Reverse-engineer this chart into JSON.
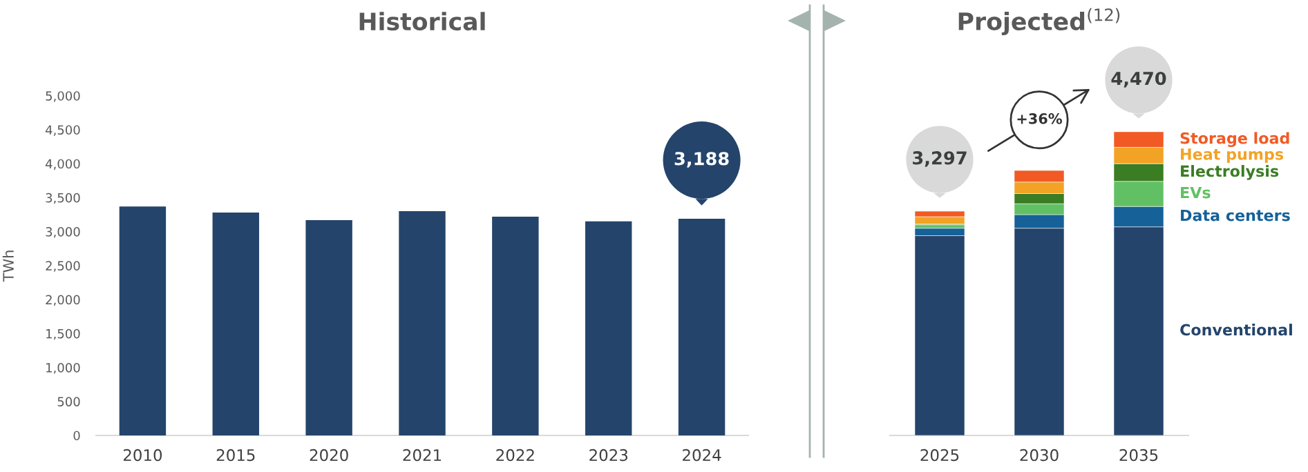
{
  "chart_data": [
    {
      "type": "bar",
      "title": "Historical",
      "ylabel": "TWh",
      "categories": [
        "2010",
        "2015",
        "2020",
        "2021",
        "2022",
        "2023",
        "2024"
      ],
      "values": [
        3370,
        3280,
        3170,
        3300,
        3220,
        3150,
        3188
      ],
      "color": "#24446b",
      "value_labels": [
        null,
        null,
        null,
        null,
        null,
        null,
        "3,188"
      ],
      "ylim": [
        0,
        5000
      ],
      "yticks": [
        0,
        500,
        {
          "value": 1000,
          "label": "1,000"
        },
        {
          "value": 1500,
          "label": "1,500"
        },
        {
          "value": 2000,
          "label": "2,000"
        },
        {
          "value": 2500,
          "label": "2,500"
        },
        {
          "value": 3000,
          "label": "3,000"
        },
        {
          "value": 3500,
          "label": "3,500"
        },
        {
          "value": 4000,
          "label": "4,000"
        },
        {
          "value": 4500,
          "label": "4,500"
        },
        {
          "value": 5000,
          "label": "5,000"
        }
      ]
    },
    {
      "type": "bar",
      "title": "Projected$^{(12)}$",
      "categories": [
        "2025",
        "2030",
        "2035"
      ],
      "stacked": true,
      "series": [
        {
          "name": "Conventional",
          "color": "#24446b",
          "values": [
            2940,
            3050,
            3070
          ]
        },
        {
          "name": "Data centers",
          "color": "#156198",
          "values": [
            110,
            200,
            300
          ]
        },
        {
          "name": "EVs",
          "color": "#62c064",
          "values": [
            50,
            160,
            370
          ]
        },
        {
          "name": "Electrolysis",
          "color": "#3b7d23",
          "values": [
            10,
            150,
            260
          ]
        },
        {
          "name": "Heat pumps",
          "color": "#f2a325",
          "values": [
            110,
            170,
            240
          ]
        },
        {
          "name": "Storage load",
          "color": "#f15a24",
          "values": [
            80,
            170,
            230
          ]
        }
      ],
      "totals": [
        "3,297",
        null,
        "4,470"
      ],
      "annotations": [
        "+36%"
      ],
      "ylim": [
        0,
        5000
      ],
      "tick_labels": "x"
    }
  ]
}
